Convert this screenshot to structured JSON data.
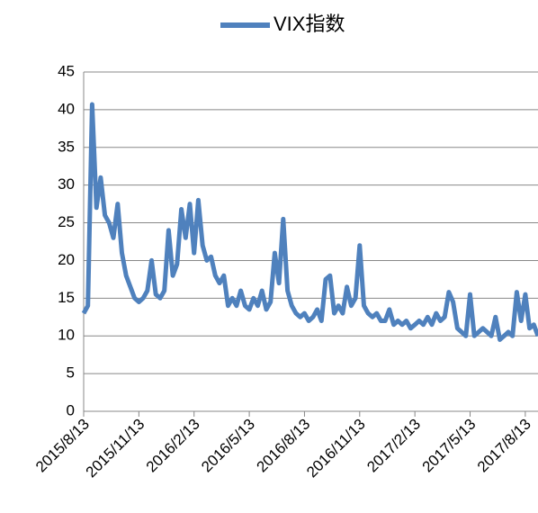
{
  "chart_data": {
    "type": "line",
    "categories": [
      "2015/8/13",
      null,
      null,
      null,
      null,
      null,
      null,
      null,
      null,
      null,
      null,
      null,
      null,
      "2015/11/13",
      null,
      null,
      null,
      null,
      null,
      null,
      null,
      null,
      null,
      null,
      null,
      null,
      "2016/2/13",
      null,
      null,
      null,
      null,
      null,
      null,
      null,
      null,
      null,
      null,
      null,
      null,
      "2016/5/13",
      null,
      null,
      null,
      null,
      null,
      null,
      null,
      null,
      null,
      null,
      null,
      null,
      "2016/8/13",
      null,
      null,
      null,
      null,
      null,
      null,
      null,
      null,
      null,
      null,
      null,
      null,
      "2016/11/13",
      null,
      null,
      null,
      null,
      null,
      null,
      null,
      null,
      null,
      null,
      null,
      null,
      "2017/2/13",
      null,
      null,
      null,
      null,
      null,
      null,
      null,
      null,
      null,
      null,
      null,
      null,
      "2017/5/13",
      null,
      null,
      null,
      null,
      null,
      null,
      null,
      null,
      null,
      null,
      null,
      null,
      "2017/8/13",
      null,
      null,
      null
    ],
    "series": [
      {
        "name": "VIX指数",
        "color": "#4f81bd",
        "values": [
          13,
          14,
          40.7,
          27,
          31,
          26,
          25,
          23,
          27.5,
          21,
          18,
          16.5,
          15,
          14.5,
          15,
          16,
          20,
          15.5,
          15,
          16,
          24,
          18,
          19.5,
          26.8,
          23,
          27.5,
          21,
          28,
          22,
          20,
          20.5,
          18,
          17,
          18,
          14,
          15,
          14,
          16,
          14,
          13.5,
          15,
          14,
          16,
          13.5,
          14.5,
          21,
          17,
          25.5,
          16,
          14,
          13,
          12.5,
          13,
          12,
          12.5,
          13.5,
          12,
          17.5,
          18,
          13,
          14,
          13,
          16.5,
          14,
          15,
          22,
          14,
          13,
          12.5,
          13,
          12,
          12,
          13.5,
          11.5,
          12,
          11.5,
          12,
          11,
          11.5,
          12,
          11.5,
          12.5,
          11.5,
          13,
          12,
          12.5,
          15.8,
          14.5,
          11,
          10.5,
          10,
          15.5,
          10,
          10.5,
          11,
          10.5,
          10,
          12.5,
          9.5,
          10,
          10.5,
          10,
          15.8,
          12,
          15.5,
          11,
          11.5,
          10
        ]
      }
    ],
    "ylim": [
      0,
      45
    ],
    "yticks": [
      0,
      5,
      10,
      15,
      20,
      25,
      30,
      35,
      40,
      45
    ],
    "grid": true,
    "legend": "top"
  }
}
